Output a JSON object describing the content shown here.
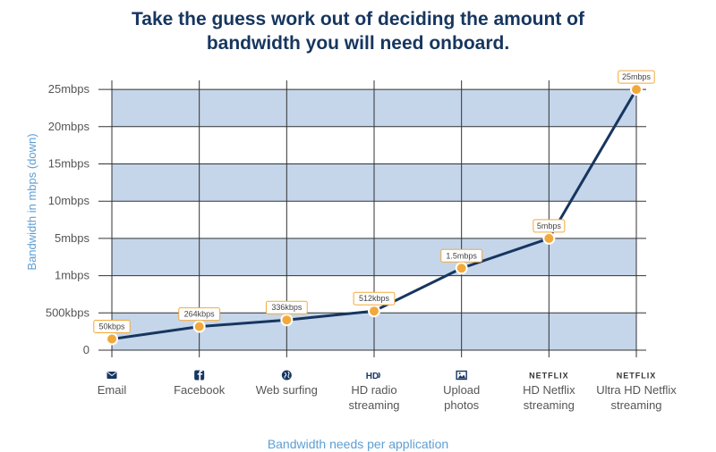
{
  "chart_data": {
    "type": "line",
    "title_lines": [
      "Take the guess work out of deciding the amount of",
      "bandwidth you will need onboard."
    ],
    "xlabel": "Bandwidth needs per application",
    "ylabel": "Bandwidth in mbps (down)",
    "yticks": [
      "0",
      "500kbps",
      "1mbps",
      "5mbps",
      "10mbps",
      "15mbps",
      "20mbps",
      "25mbps"
    ],
    "categories": [
      {
        "lines": [
          "Email"
        ],
        "icon": "envelope-icon"
      },
      {
        "lines": [
          "Facebook"
        ],
        "icon": "facebook-icon"
      },
      {
        "lines": [
          "Web surfing"
        ],
        "icon": "globe-icon"
      },
      {
        "lines": [
          "HD radio",
          "streaming"
        ],
        "icon": "hd-radio-icon"
      },
      {
        "lines": [
          "Upload",
          "photos"
        ],
        "icon": "photo-icon"
      },
      {
        "lines": [
          "HD Netflix",
          "streaming"
        ],
        "icon": "netflix-logo"
      },
      {
        "lines": [
          "Ultra HD Netflix",
          "streaming"
        ],
        "icon": "netflix-logo"
      }
    ],
    "icon_text": {
      "hd": "HD",
      "netflix": "NETFLIX"
    },
    "series": [
      {
        "values": [
          0.3,
          0.633,
          0.81,
          1.05,
          2.2,
          3.0,
          7.0
        ],
        "labels": [
          "50kbps",
          "264kbps",
          "336kbps",
          "512kbps",
          "1.5mbps",
          "5mbps",
          "25mbps"
        ]
      }
    ],
    "ylim": [
      0,
      7
    ],
    "grid": true,
    "colors": {
      "band": "#c5d5ea",
      "line": "#16365f",
      "marker_fill": "#f2a93b",
      "marker_stroke": "#ffffff",
      "title": "#16365f",
      "axis_title": "#5d9ed4"
    }
  }
}
